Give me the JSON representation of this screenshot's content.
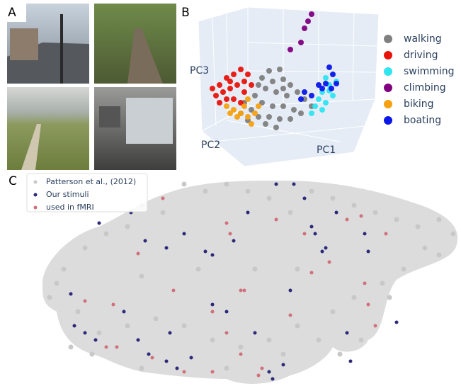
{
  "panel_labels": [
    "A",
    "B",
    "C"
  ],
  "chart_data": [
    {
      "type": "scatter",
      "x_label": "PC1",
      "y_label": "PC2",
      "z_label": "PC3",
      "xlim": [
        0,
        250
      ],
      "ylim": [
        0,
        230
      ],
      "series": [
        {
          "name": "walking",
          "color": "#808080",
          "x": [
            100,
            115,
            90,
            105,
            120,
            130,
            95,
            110,
            125,
            80,
            90,
            105,
            120,
            135,
            75,
            85,
            100,
            115,
            130,
            145,
            150,
            65,
            110,
            95,
            70,
            140,
            60,
            160,
            120,
            85
          ],
          "values": [
            135,
            137,
            125,
            120,
            123,
            115,
            110,
            105,
            100,
            100,
            90,
            85,
            85,
            80,
            80,
            70,
            70,
            67,
            67,
            75,
            95,
            90,
            55,
            60,
            65,
            105,
            75,
            85,
            110,
            115
          ]
        },
        {
          "name": "driving",
          "color": "#e8140c",
          "x": [
            20,
            30,
            40,
            50,
            25,
            35,
            45,
            55,
            65,
            60,
            70,
            40,
            50,
            65,
            30,
            60,
            75,
            45
          ],
          "values": [
            110,
            115,
            125,
            130,
            100,
            105,
            110,
            115,
            120,
            137,
            130,
            95,
            95,
            105,
            90,
            90,
            115,
            120
          ]
        },
        {
          "name": "swimming",
          "color": "#2ee5f0",
          "x": [
            180,
            185,
            175,
            190,
            170,
            180,
            165,
            175,
            160,
            185,
            195
          ],
          "values": [
            125,
            115,
            105,
            100,
            95,
            90,
            85,
            80,
            75,
            107,
            120
          ]
        },
        {
          "name": "climbing",
          "color": "#800080",
          "x": [
            160,
            155,
            150,
            145,
            130
          ],
          "values": [
            215,
            205,
            195,
            175,
            165
          ]
        },
        {
          "name": "biking",
          "color": "#f6a10f",
          "x": [
            40,
            50,
            60,
            70,
            80,
            65,
            55,
            75,
            45,
            85,
            70
          ],
          "values": [
            85,
            80,
            75,
            70,
            75,
            85,
            70,
            60,
            75,
            85,
            95
          ]
        },
        {
          "name": "boating",
          "color": "#0a17e8",
          "x": [
            185,
            190,
            195,
            180,
            175,
            150,
            145,
            160,
            170,
            188
          ],
          "values": [
            140,
            130,
            117,
            117,
            110,
            105,
            95,
            100,
            115,
            110
          ]
        }
      ]
    },
    {
      "type": "scatter",
      "xlim": [
        0,
        600
      ],
      "ylim": [
        0,
        300
      ],
      "series": [
        {
          "name": "Patterson et al., (2012)",
          "color": "#c8c8c8",
          "x": [
            30,
            20,
            40,
            70,
            100,
            130,
            150,
            180,
            210,
            240,
            270,
            300,
            330,
            360,
            390,
            420,
            450,
            480,
            510,
            540,
            570,
            590,
            550,
            520,
            490,
            450,
            420,
            400,
            370,
            330,
            290,
            250,
            210,
            170,
            130,
            90,
            60,
            50,
            80,
            150,
            270,
            350,
            430,
            460,
            500,
            570,
            310,
            230,
            150,
            370
          ],
          "values": [
            145,
            125,
            165,
            195,
            215,
            225,
            255,
            245,
            285,
            275,
            285,
            275,
            265,
            245,
            275,
            265,
            255,
            245,
            235,
            225,
            235,
            215,
            195,
            165,
            145,
            125,
            105,
            65,
            85,
            65,
            55,
            65,
            85,
            95,
            85,
            75,
            105,
            55,
            45,
            25,
            25,
            45,
            45,
            65,
            125,
            185,
            165,
            165,
            155,
            165
          ]
        },
        {
          "name": "Our stimuli",
          "color": "#2b2a7a",
          "x": [
            90,
            135,
            155,
            185,
            210,
            240,
            250,
            280,
            300,
            340,
            365,
            380,
            395,
            405,
            410,
            470,
            465,
            250,
            270,
            360,
            310,
            190,
            125,
            50,
            70,
            85,
            55,
            145,
            160,
            185,
            200,
            220,
            330,
            335,
            350,
            440,
            445,
            510,
            425,
            390
          ],
          "values": [
            230,
            245,
            205,
            195,
            215,
            190,
            185,
            205,
            245,
            285,
            285,
            265,
            215,
            190,
            195,
            190,
            215,
            115,
            105,
            135,
            75,
            75,
            105,
            130,
            75,
            65,
            85,
            65,
            45,
            35,
            25,
            40,
            20,
            10,
            30,
            75,
            35,
            90,
            245,
            225
          ]
        },
        {
          "name": "used in fMRI",
          "color": "#d0707a",
          "x": [
            145,
            180,
            270,
            275,
            340,
            380,
            390,
            415,
            440,
            465,
            470,
            480,
            360,
            290,
            250,
            195,
            110,
            70,
            100,
            115,
            165,
            210,
            250,
            290,
            315,
            320,
            295,
            270,
            460,
            495
          ],
          "values": [
            187,
            265,
            230,
            215,
            235,
            215,
            160,
            175,
            235,
            145,
            115,
            85,
            100,
            135,
            105,
            135,
            115,
            120,
            55,
            55,
            40,
            20,
            20,
            45,
            15,
            25,
            135,
            75,
            240,
            215
          ]
        }
      ]
    }
  ]
}
